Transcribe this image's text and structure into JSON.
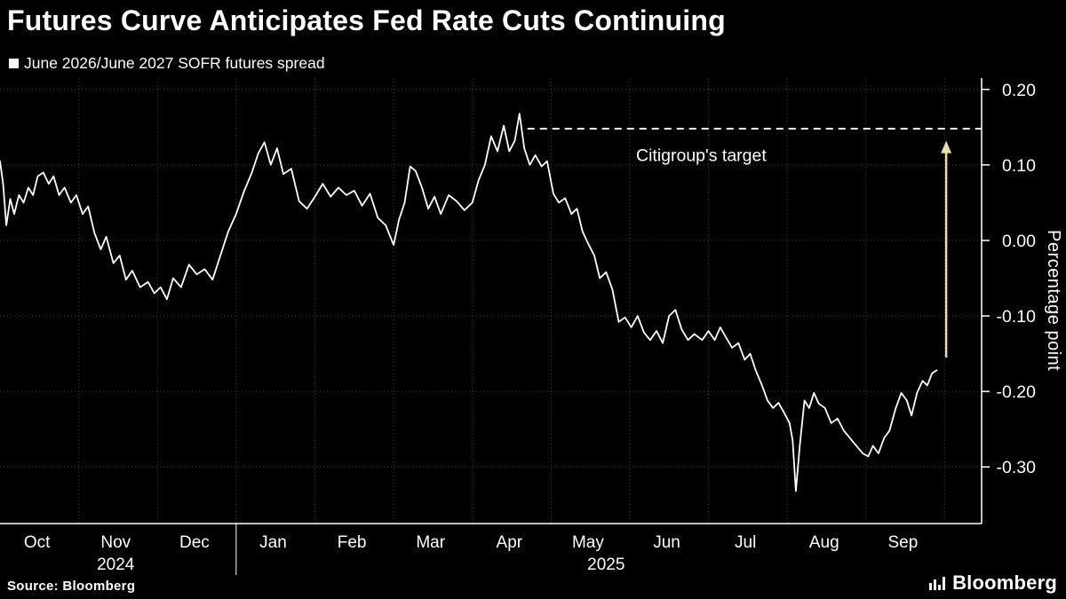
{
  "header": {
    "title": "Futures Curve Anticipates Fed Rate Cuts Continuing",
    "legend_label": "June 2026/June 2027 SOFR futures spread",
    "legend_marker_color": "#ffffff"
  },
  "footer": {
    "source": "Source: Bloomberg",
    "logo_text": "Bloomberg"
  },
  "chart_data": {
    "type": "line",
    "title": "Futures Curve Anticipates Fed Rate Cuts Continuing",
    "subtitle": "June 2026/June 2027 SOFR futures spread",
    "grid_color": "#464646",
    "axis_color": "#ffffff",
    "x_axis": {
      "months": [
        "Oct",
        "Nov",
        "Dec",
        "Jan",
        "Feb",
        "Mar",
        "Apr",
        "May",
        "Jun",
        "Jul",
        "Aug",
        "Sep"
      ],
      "years": [
        {
          "label": "2024",
          "month_index": 1.47
        },
        {
          "label": "2025",
          "month_index": 7.7
        }
      ],
      "year_separators": [
        3
      ],
      "domain": [
        0,
        12.47
      ]
    },
    "y_axis": {
      "label": "Percentage point",
      "domain": [
        -0.375,
        0.215
      ],
      "ticks": [
        {
          "label": "0.20",
          "value": 0.2
        },
        {
          "label": "0.10",
          "value": 0.1
        },
        {
          "label": "0.00",
          "value": 0.0
        },
        {
          "label": "-0.10",
          "value": -0.1
        },
        {
          "label": "-0.20",
          "value": -0.2
        },
        {
          "label": "-0.30",
          "value": -0.3
        }
      ]
    },
    "annotations": {
      "target_line": {
        "label": "Citigroup's target",
        "value": 0.148,
        "x_start_month": 6.7,
        "label_x_month": 8.08,
        "label_y_value": 0.105,
        "color": "#ffffff",
        "style": "dashed"
      },
      "arrow": {
        "direction": "up",
        "x_month": 12.02,
        "y_from": -0.155,
        "y_to": 0.132,
        "color": "#e6dfa6"
      }
    },
    "series": [
      {
        "name": "June 2026/June 2027 SOFR futures spread",
        "color": "#ffffff",
        "points": [
          [
            0.0,
            0.105
          ],
          [
            0.04,
            0.075
          ],
          [
            0.08,
            0.02
          ],
          [
            0.13,
            0.055
          ],
          [
            0.18,
            0.035
          ],
          [
            0.24,
            0.06
          ],
          [
            0.3,
            0.05
          ],
          [
            0.36,
            0.07
          ],
          [
            0.42,
            0.06
          ],
          [
            0.48,
            0.085
          ],
          [
            0.55,
            0.09
          ],
          [
            0.62,
            0.075
          ],
          [
            0.68,
            0.085
          ],
          [
            0.75,
            0.06
          ],
          [
            0.82,
            0.07
          ],
          [
            0.9,
            0.05
          ],
          [
            0.97,
            0.06
          ],
          [
            1.05,
            0.035
          ],
          [
            1.12,
            0.045
          ],
          [
            1.2,
            0.01
          ],
          [
            1.28,
            -0.012
          ],
          [
            1.35,
            0.005
          ],
          [
            1.44,
            -0.03
          ],
          [
            1.52,
            -0.02
          ],
          [
            1.6,
            -0.052
          ],
          [
            1.68,
            -0.04
          ],
          [
            1.78,
            -0.062
          ],
          [
            1.88,
            -0.055
          ],
          [
            1.96,
            -0.07
          ],
          [
            2.04,
            -0.062
          ],
          [
            2.12,
            -0.078
          ],
          [
            2.2,
            -0.05
          ],
          [
            2.3,
            -0.062
          ],
          [
            2.4,
            -0.032
          ],
          [
            2.5,
            -0.045
          ],
          [
            2.6,
            -0.038
          ],
          [
            2.7,
            -0.052
          ],
          [
            2.8,
            -0.02
          ],
          [
            2.9,
            0.012
          ],
          [
            3.0,
            0.035
          ],
          [
            3.1,
            0.065
          ],
          [
            3.2,
            0.09
          ],
          [
            3.28,
            0.115
          ],
          [
            3.36,
            0.13
          ],
          [
            3.44,
            0.1
          ],
          [
            3.52,
            0.122
          ],
          [
            3.6,
            0.088
          ],
          [
            3.7,
            0.095
          ],
          [
            3.8,
            0.052
          ],
          [
            3.9,
            0.042
          ],
          [
            4.0,
            0.058
          ],
          [
            4.1,
            0.075
          ],
          [
            4.2,
            0.058
          ],
          [
            4.3,
            0.07
          ],
          [
            4.4,
            0.06
          ],
          [
            4.5,
            0.066
          ],
          [
            4.6,
            0.046
          ],
          [
            4.7,
            0.062
          ],
          [
            4.8,
            0.03
          ],
          [
            4.9,
            0.02
          ],
          [
            5.0,
            -0.006
          ],
          [
            5.07,
            0.028
          ],
          [
            5.14,
            0.05
          ],
          [
            5.21,
            0.098
          ],
          [
            5.28,
            0.092
          ],
          [
            5.36,
            0.07
          ],
          [
            5.44,
            0.042
          ],
          [
            5.52,
            0.058
          ],
          [
            5.6,
            0.035
          ],
          [
            5.7,
            0.06
          ],
          [
            5.8,
            0.052
          ],
          [
            5.9,
            0.04
          ],
          [
            6.0,
            0.05
          ],
          [
            6.08,
            0.08
          ],
          [
            6.16,
            0.1
          ],
          [
            6.24,
            0.138
          ],
          [
            6.32,
            0.118
          ],
          [
            6.4,
            0.152
          ],
          [
            6.47,
            0.118
          ],
          [
            6.54,
            0.132
          ],
          [
            6.6,
            0.168
          ],
          [
            6.66,
            0.122
          ],
          [
            6.73,
            0.1
          ],
          [
            6.8,
            0.113
          ],
          [
            6.88,
            0.098
          ],
          [
            6.95,
            0.105
          ],
          [
            7.03,
            0.062
          ],
          [
            7.1,
            0.05
          ],
          [
            7.18,
            0.056
          ],
          [
            7.26,
            0.035
          ],
          [
            7.33,
            0.042
          ],
          [
            7.4,
            0.012
          ],
          [
            7.48,
            -0.006
          ],
          [
            7.55,
            -0.02
          ],
          [
            7.62,
            -0.05
          ],
          [
            7.7,
            -0.042
          ],
          [
            7.78,
            -0.065
          ],
          [
            7.86,
            -0.108
          ],
          [
            7.94,
            -0.102
          ],
          [
            8.02,
            -0.115
          ],
          [
            8.1,
            -0.1
          ],
          [
            8.18,
            -0.122
          ],
          [
            8.26,
            -0.132
          ],
          [
            8.34,
            -0.12
          ],
          [
            8.42,
            -0.136
          ],
          [
            8.5,
            -0.1
          ],
          [
            8.58,
            -0.092
          ],
          [
            8.66,
            -0.118
          ],
          [
            8.74,
            -0.132
          ],
          [
            8.82,
            -0.124
          ],
          [
            8.92,
            -0.132
          ],
          [
            9.0,
            -0.12
          ],
          [
            9.08,
            -0.132
          ],
          [
            9.15,
            -0.115
          ],
          [
            9.22,
            -0.128
          ],
          [
            9.3,
            -0.142
          ],
          [
            9.38,
            -0.136
          ],
          [
            9.46,
            -0.158
          ],
          [
            9.53,
            -0.15
          ],
          [
            9.6,
            -0.172
          ],
          [
            9.68,
            -0.192
          ],
          [
            9.75,
            -0.212
          ],
          [
            9.82,
            -0.222
          ],
          [
            9.89,
            -0.215
          ],
          [
            9.96,
            -0.228
          ],
          [
            10.03,
            -0.242
          ],
          [
            10.07,
            -0.265
          ],
          [
            10.11,
            -0.332
          ],
          [
            10.16,
            -0.272
          ],
          [
            10.22,
            -0.212
          ],
          [
            10.28,
            -0.222
          ],
          [
            10.34,
            -0.202
          ],
          [
            10.4,
            -0.216
          ],
          [
            10.48,
            -0.222
          ],
          [
            10.56,
            -0.242
          ],
          [
            10.64,
            -0.236
          ],
          [
            10.72,
            -0.252
          ],
          [
            10.8,
            -0.262
          ],
          [
            10.88,
            -0.272
          ],
          [
            10.96,
            -0.282
          ],
          [
            11.03,
            -0.286
          ],
          [
            11.09,
            -0.272
          ],
          [
            11.16,
            -0.282
          ],
          [
            11.23,
            -0.262
          ],
          [
            11.3,
            -0.252
          ],
          [
            11.38,
            -0.222
          ],
          [
            11.45,
            -0.202
          ],
          [
            11.52,
            -0.212
          ],
          [
            11.58,
            -0.232
          ],
          [
            11.65,
            -0.202
          ],
          [
            11.72,
            -0.186
          ],
          [
            11.78,
            -0.192
          ],
          [
            11.84,
            -0.176
          ],
          [
            11.9,
            -0.172
          ]
        ]
      }
    ]
  }
}
